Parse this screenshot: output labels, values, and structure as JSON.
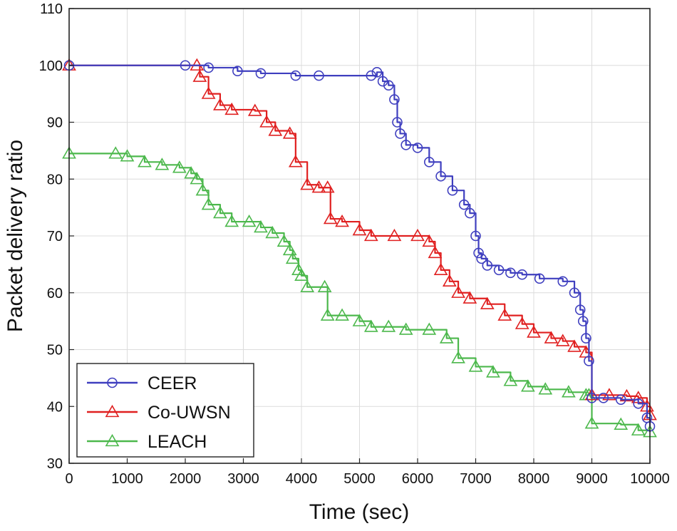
{
  "chart_data": {
    "type": "line",
    "title": "",
    "xlabel": "Time (sec)",
    "ylabel": "Packet delivery ratio",
    "xlim": [
      0,
      10000
    ],
    "ylim": [
      30,
      110
    ],
    "xticks": [
      0,
      1000,
      2000,
      3000,
      4000,
      5000,
      6000,
      7000,
      8000,
      9000,
      10000
    ],
    "yticks": [
      30,
      40,
      50,
      60,
      70,
      80,
      90,
      100,
      110
    ],
    "grid": true,
    "legend_position": "bottom-left",
    "series": [
      {
        "name": "CEER",
        "color": "#3f3fbf",
        "marker": "circle",
        "x": [
          0,
          2000,
          2400,
          2900,
          3300,
          3900,
          4300,
          5200,
          5300,
          5400,
          5500,
          5600,
          5650,
          5700,
          5800,
          6000,
          6200,
          6400,
          6600,
          6800,
          6900,
          7000,
          7050,
          7100,
          7200,
          7400,
          7600,
          7800,
          8100,
          8500,
          8700,
          8800,
          8850,
          8900,
          8950,
          9000,
          9200,
          9500,
          9800,
          9950,
          10000
        ],
        "y": [
          100,
          100,
          99.6,
          99,
          98.6,
          98.2,
          98.2,
          98.2,
          98.8,
          97.2,
          96.5,
          94,
          90,
          88,
          86,
          85.5,
          83,
          80.5,
          78,
          75.5,
          74,
          70,
          67,
          66,
          64.8,
          64,
          63.5,
          63.2,
          62.5,
          62,
          60,
          57,
          55,
          52,
          48,
          41.5,
          41.5,
          41.2,
          40.5,
          38,
          36.5
        ]
      },
      {
        "name": "Co-UWSN",
        "color": "#e02020",
        "marker": "triangle",
        "x": [
          0,
          2200,
          2250,
          2400,
          2600,
          2800,
          3200,
          3400,
          3550,
          3800,
          3900,
          4100,
          4300,
          4450,
          4500,
          4700,
          5000,
          5200,
          5600,
          6000,
          6200,
          6300,
          6400,
          6550,
          6700,
          6900,
          7200,
          7500,
          7800,
          8000,
          8300,
          8500,
          8700,
          8900,
          9000,
          9300,
          9600,
          9800,
          9950,
          10000
        ],
        "y": [
          100,
          100,
          98,
          95,
          93,
          92.2,
          92,
          90,
          88.5,
          88,
          83,
          79,
          78.5,
          78.5,
          73,
          72.5,
          71,
          70,
          70,
          70,
          69,
          67,
          64,
          62,
          60,
          59,
          58,
          56,
          54.5,
          53,
          52,
          51.5,
          50.5,
          49.5,
          42,
          42,
          41.8,
          41.5,
          40,
          38.5
        ]
      },
      {
        "name": "LEACH",
        "color": "#4cb84c",
        "marker": "triangle",
        "x": [
          0,
          800,
          1000,
          1300,
          1600,
          1900,
          2100,
          2200,
          2300,
          2400,
          2600,
          2800,
          3100,
          3300,
          3500,
          3700,
          3800,
          3850,
          3950,
          4000,
          4100,
          4400,
          4450,
          4700,
          5000,
          5200,
          5500,
          5800,
          6200,
          6500,
          6700,
          7000,
          7300,
          7600,
          7900,
          8200,
          8600,
          8900,
          8950,
          9000,
          9500,
          9800,
          10000
        ],
        "y": [
          84.5,
          84.5,
          84,
          83,
          82.5,
          82,
          81,
          80,
          78,
          75.5,
          74,
          72.5,
          72.5,
          71.5,
          70.5,
          69,
          67.5,
          66,
          64,
          63,
          61,
          61,
          56,
          56,
          55,
          54,
          54,
          53.5,
          53.5,
          52,
          48.5,
          47,
          46,
          44.5,
          43.5,
          43,
          42.5,
          42,
          42,
          37,
          36.8,
          35.8,
          35.5
        ]
      }
    ]
  }
}
